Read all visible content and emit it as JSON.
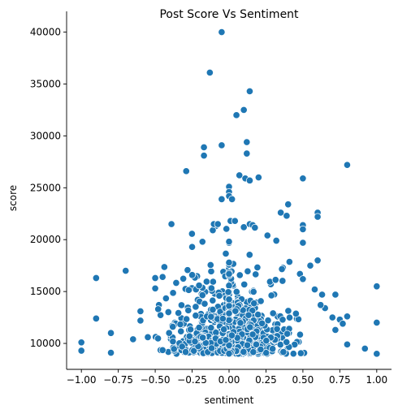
{
  "chart_data": {
    "type": "scatter",
    "title": "Post Score Vs Sentiment",
    "xlabel": "sentiment",
    "ylabel": "score",
    "xlim": [
      -1.1,
      1.1
    ],
    "ylim": [
      7500,
      42000
    ],
    "x_ticks": [
      -1.0,
      -0.75,
      -0.5,
      -0.25,
      0.0,
      0.25,
      0.5,
      0.75,
      1.0
    ],
    "x_tick_labels": [
      "−1.00",
      "−0.75",
      "−0.50",
      "−0.25",
      "0.00",
      "0.25",
      "0.50",
      "0.75",
      "1.00"
    ],
    "y_ticks": [
      10000,
      15000,
      20000,
      25000,
      30000,
      35000,
      40000
    ],
    "y_tick_labels": [
      "10000",
      "15000",
      "20000",
      "25000",
      "30000",
      "35000",
      "40000"
    ],
    "grid": false,
    "color": "#1f77b4",
    "outliers": [
      [
        -0.05,
        40000
      ],
      [
        -0.13,
        36100
      ],
      [
        0.14,
        34300
      ],
      [
        0.1,
        32500
      ],
      [
        0.05,
        32000
      ],
      [
        0.12,
        29400
      ],
      [
        -0.05,
        29100
      ],
      [
        -0.17,
        28900
      ],
      [
        -0.17,
        28100
      ],
      [
        0.12,
        28300
      ],
      [
        0.8,
        27200
      ],
      [
        -0.29,
        26600
      ],
      [
        0.07,
        26200
      ],
      [
        0.11,
        25900
      ],
      [
        0.14,
        25700
      ],
      [
        0.2,
        26000
      ],
      [
        0.5,
        25900
      ],
      [
        0.0,
        25100
      ],
      [
        0.0,
        24600
      ],
      [
        0.0,
        24200
      ],
      [
        -0.05,
        23900
      ],
      [
        0.02,
        23900
      ],
      [
        0.4,
        23400
      ],
      [
        0.35,
        22600
      ],
      [
        0.39,
        22300
      ],
      [
        0.6,
        22600
      ],
      [
        0.6,
        22200
      ],
      [
        -0.39,
        21500
      ],
      [
        0.5,
        21400
      ],
      [
        0.5,
        21000
      ],
      [
        0.5,
        19700
      ],
      [
        -0.7,
        17000
      ],
      [
        -0.9,
        16300
      ],
      [
        -0.9,
        12400
      ],
      [
        -0.8,
        11000
      ],
      [
        -0.8,
        9100
      ],
      [
        -1.0,
        10100
      ],
      [
        -1.0,
        9300
      ],
      [
        0.8,
        12600
      ],
      [
        0.8,
        9900
      ],
      [
        0.92,
        9500
      ],
      [
        1.0,
        15500
      ],
      [
        1.0,
        12000
      ],
      [
        1.0,
        9000
      ],
      [
        -0.65,
        10400
      ],
      [
        -0.6,
        13100
      ],
      [
        -0.6,
        12200
      ],
      [
        -0.55,
        10600
      ],
      [
        0.72,
        14700
      ],
      [
        0.7,
        12500
      ],
      [
        0.75,
        12300
      ],
      [
        0.77,
        11900
      ],
      [
        0.72,
        11300
      ],
      [
        0.6,
        18000
      ],
      [
        0.55,
        17500
      ],
      [
        0.48,
        16700
      ],
      [
        0.5,
        16200
      ],
      [
        0.1,
        21200
      ],
      [
        0.14,
        21500
      ],
      [
        0.16,
        21400
      ],
      [
        -0.09,
        21300
      ],
      [
        -0.11,
        20900
      ],
      [
        0.01,
        21800
      ],
      [
        0.04,
        21800
      ],
      [
        0.26,
        20400
      ],
      [
        0.32,
        19900
      ],
      [
        -0.25,
        19300
      ],
      [
        -0.18,
        19800
      ],
      [
        -0.45,
        16400
      ],
      [
        -0.5,
        16300
      ],
      [
        -0.5,
        15300
      ],
      [
        0.63,
        14700
      ],
      [
        0.65,
        13400
      ],
      [
        0.58,
        15200
      ],
      [
        0.62,
        13700
      ]
    ]
  }
}
